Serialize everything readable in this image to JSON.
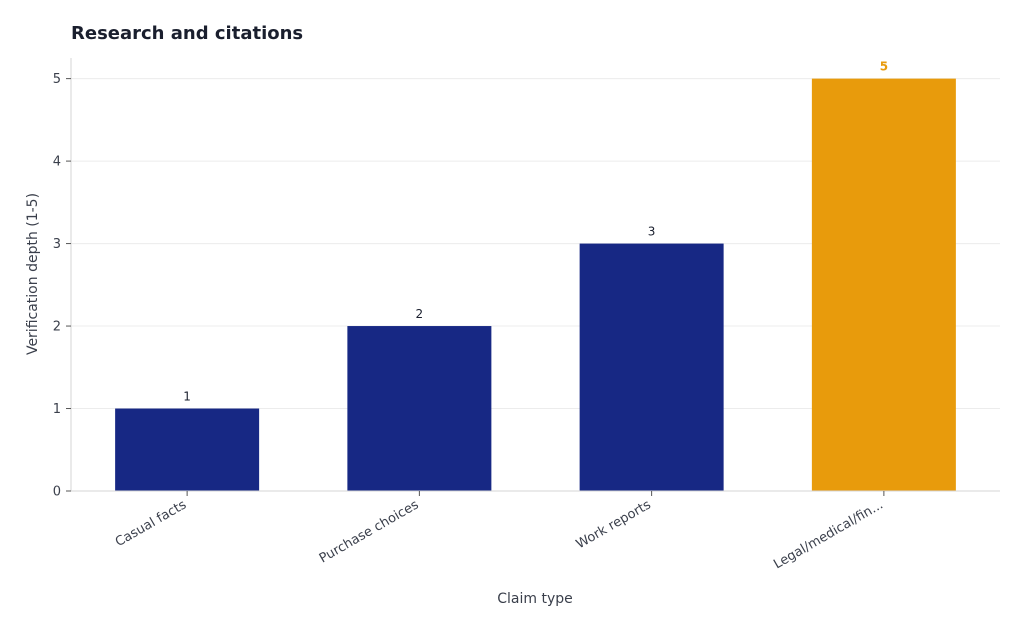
{
  "chart_data": {
    "type": "bar",
    "title": "Research and citations",
    "xlabel": "Claim type",
    "ylabel": "Verification depth (1-5)",
    "categories": [
      "Casual facts",
      "Purchase choices",
      "Work reports",
      "Legal/medical/fin..."
    ],
    "values": [
      1,
      2,
      3,
      5
    ],
    "data_labels": [
      "1",
      "2",
      "3",
      "5"
    ],
    "y_ticks": [
      0,
      1,
      2,
      3,
      4,
      5
    ],
    "ylim": [
      0,
      5.25
    ],
    "grid": true,
    "legend": "none",
    "highlight_index": 3,
    "colors": {
      "bar": "#172884",
      "highlight": "#e89b0c"
    }
  }
}
